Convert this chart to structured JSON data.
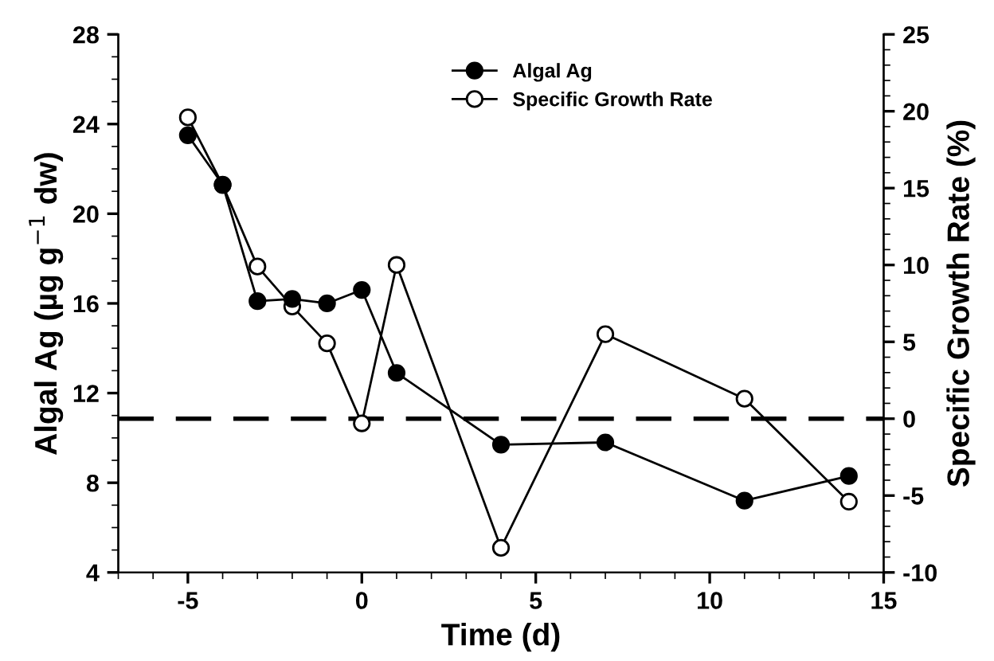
{
  "chart_data": {
    "type": "line",
    "xlabel": "Time (d)",
    "ylabel": "Algal Ag (µg g$^{−1}$ dw)",
    "y2label": "Specific Growth Rate (%)",
    "xlim": [
      -7,
      15
    ],
    "xticks": [
      -5,
      0,
      5,
      10,
      15
    ],
    "ylim": [
      4,
      28
    ],
    "yticks": [
      4,
      8,
      12,
      16,
      20,
      24,
      28
    ],
    "y2lim": [
      -10,
      25
    ],
    "y2ticks": [
      -10,
      -5,
      0,
      5,
      10,
      15,
      20,
      25
    ],
    "x": [
      -5,
      -4,
      -3,
      -2,
      -1,
      0,
      1,
      4,
      7,
      11,
      14
    ],
    "series": [
      {
        "name": "Algal Ag",
        "color": "#000000",
        "marker": "circle",
        "values": [
          23.5,
          21.3,
          16.1,
          16.2,
          16.0,
          16.6,
          12.9,
          9.7,
          9.8,
          7.2,
          8.3
        ]
      },
      {
        "name": "Specific Growth Rate",
        "color": "#000000",
        "marker": "circle",
        "axis": "y2",
        "values": [
          19.6,
          15.2,
          9.9,
          7.3,
          4.9,
          -0.3,
          10.0,
          -8.4,
          5.5,
          1.3,
          -5.4
        ]
      }
    ],
    "ref_lines": [
      {
        "axis": "y2",
        "value": 0,
        "color": "#000000",
        "line_style": "dashed"
      }
    ],
    "legend": "top right",
    "grid": false,
    "line_style": "solid"
  }
}
